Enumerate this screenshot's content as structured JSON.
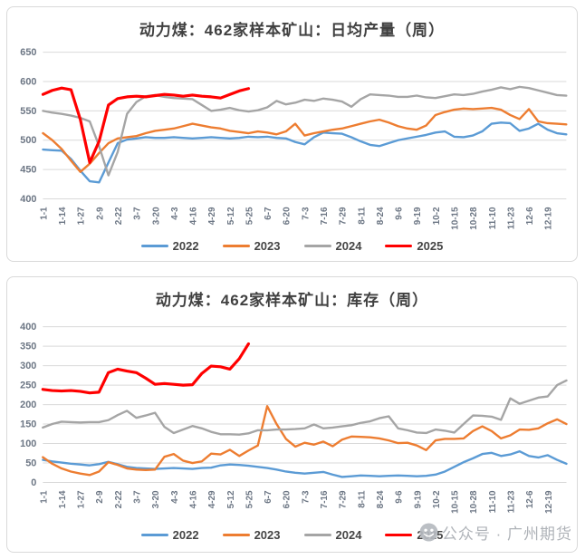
{
  "watermark": {
    "text": "公众号 · 广州期货",
    "icon": "wechat-logo",
    "color": "#a9adb3"
  },
  "chart_data": [
    {
      "type": "line",
      "title": "动力煤：462家样本矿山：日均产量（周）",
      "xlabel": "",
      "ylabel": "",
      "grid": true,
      "legend_position": "bottom",
      "y_axis": {
        "min": 400,
        "max": 650,
        "step": 50,
        "ticks": [
          400,
          450,
          500,
          550,
          600,
          650
        ]
      },
      "x_labels": [
        "1-1",
        "1-14",
        "1-27",
        "2-9",
        "2-22",
        "3-7",
        "3-20",
        "4-3",
        "4-16",
        "4-29",
        "5-12",
        "5-25",
        "6-7",
        "6-20",
        "7-3",
        "7-16",
        "7-29",
        "8-11",
        "8-24",
        "9-6",
        "9-19",
        "10-2",
        "10-15",
        "10-28",
        "11-10",
        "11-23",
        "12-6",
        "12-19"
      ],
      "x_half_steps": 56,
      "series": [
        {
          "name": "2022",
          "color": "#5B9BD5",
          "width": 2.4,
          "values": [
            484,
            483,
            482,
            468,
            448,
            430,
            428,
            462,
            495,
            501,
            503,
            505,
            504,
            504,
            505,
            504,
            503,
            504,
            505,
            504,
            503,
            504,
            506,
            505,
            506,
            504,
            503,
            497,
            493,
            505,
            513,
            512,
            511,
            505,
            498,
            492,
            490,
            495,
            500,
            503,
            506,
            509,
            513,
            515,
            506,
            505,
            508,
            515,
            528,
            530,
            529,
            516,
            520,
            528,
            518,
            512,
            510
          ]
        },
        {
          "name": "2023",
          "color": "#ED7D31",
          "width": 2.4,
          "values": [
            512,
            500,
            485,
            465,
            446,
            460,
            478,
            495,
            503,
            505,
            507,
            512,
            516,
            518,
            520,
            524,
            528,
            525,
            522,
            520,
            516,
            514,
            512,
            515,
            513,
            510,
            515,
            528,
            508,
            512,
            515,
            518,
            520,
            524,
            528,
            532,
            535,
            530,
            524,
            520,
            518,
            525,
            543,
            548,
            552,
            554,
            553,
            554,
            555,
            552,
            543,
            536,
            553,
            532,
            529,
            528,
            527
          ]
        },
        {
          "name": "2024",
          "color": "#A5A5A5",
          "width": 2.4,
          "values": [
            550,
            547,
            545,
            542,
            538,
            532,
            490,
            440,
            480,
            545,
            565,
            575,
            577,
            574,
            572,
            571,
            570,
            560,
            550,
            552,
            555,
            551,
            549,
            551,
            556,
            567,
            561,
            564,
            569,
            567,
            571,
            569,
            566,
            557,
            570,
            578,
            577,
            576,
            574,
            574,
            576,
            573,
            572,
            575,
            578,
            577,
            579,
            583,
            586,
            590,
            587,
            591,
            589,
            585,
            581,
            577,
            576
          ]
        },
        {
          "name": "2025",
          "color": "#FF0000",
          "width": 3.2,
          "values": [
            578,
            585,
            589,
            586,
            535,
            462,
            498,
            560,
            571,
            574,
            575,
            574,
            576,
            578,
            577,
            575,
            577,
            575,
            574,
            572,
            578,
            584,
            588
          ]
        }
      ]
    },
    {
      "type": "line",
      "title": "动力煤：462家样本矿山：库存（周）",
      "xlabel": "",
      "ylabel": "",
      "grid": true,
      "legend_position": "bottom",
      "y_axis": {
        "min": 0,
        "max": 400,
        "step": 50,
        "ticks": [
          0,
          50,
          100,
          150,
          200,
          250,
          300,
          350,
          400
        ]
      },
      "x_labels": [
        "1-1",
        "1-14",
        "1-27",
        "2-9",
        "2-22",
        "3-7",
        "3-20",
        "4-3",
        "4-16",
        "4-29",
        "5-12",
        "5-25",
        "6-7",
        "6-20",
        "7-3",
        "7-16",
        "7-29",
        "8-11",
        "8-24",
        "9-6",
        "9-19",
        "10-2",
        "10-15",
        "10-28",
        "11-10",
        "11-23",
        "12-6",
        "12-19"
      ],
      "x_half_steps": 56,
      "series": [
        {
          "name": "2022",
          "color": "#5B9BD5",
          "width": 2.4,
          "values": [
            58,
            54,
            51,
            48,
            46,
            44,
            47,
            53,
            47,
            40,
            37,
            36,
            35,
            36,
            37,
            36,
            35,
            37,
            38,
            44,
            46,
            45,
            43,
            40,
            37,
            33,
            28,
            25,
            23,
            25,
            27,
            20,
            14,
            16,
            18,
            17,
            16,
            17,
            18,
            17,
            16,
            17,
            20,
            28,
            40,
            52,
            62,
            73,
            76,
            68,
            72,
            80,
            68,
            64,
            70,
            58,
            48
          ]
        },
        {
          "name": "2023",
          "color": "#ED7D31",
          "width": 2.4,
          "values": [
            65,
            48,
            36,
            28,
            23,
            19,
            28,
            52,
            45,
            36,
            33,
            32,
            33,
            66,
            73,
            56,
            50,
            54,
            74,
            72,
            84,
            68,
            82,
            95,
            196,
            150,
            112,
            92,
            102,
            97,
            105,
            93,
            110,
            118,
            117,
            116,
            113,
            108,
            101,
            102,
            95,
            83,
            108,
            112,
            112,
            113,
            132,
            144,
            132,
            113,
            121,
            136,
            135,
            139,
            152,
            162,
            150
          ]
        },
        {
          "name": "2024",
          "color": "#A5A5A5",
          "width": 2.4,
          "values": [
            141,
            150,
            156,
            155,
            154,
            155,
            155,
            160,
            173,
            184,
            166,
            172,
            179,
            143,
            127,
            136,
            145,
            139,
            130,
            124,
            124,
            123,
            126,
            134,
            134,
            136,
            136,
            137,
            139,
            149,
            139,
            141,
            144,
            147,
            153,
            157,
            165,
            170,
            139,
            134,
            128,
            127,
            136,
            133,
            128,
            150,
            172,
            171,
            169,
            161,
            216,
            202,
            210,
            218,
            221,
            250,
            262
          ]
        },
        {
          "name": "2025",
          "color": "#FF0000",
          "width": 3.2,
          "values": [
            239,
            236,
            235,
            236,
            234,
            230,
            232,
            282,
            291,
            286,
            282,
            268,
            252,
            254,
            252,
            250,
            251,
            280,
            299,
            297,
            291,
            318,
            356
          ]
        }
      ]
    }
  ]
}
